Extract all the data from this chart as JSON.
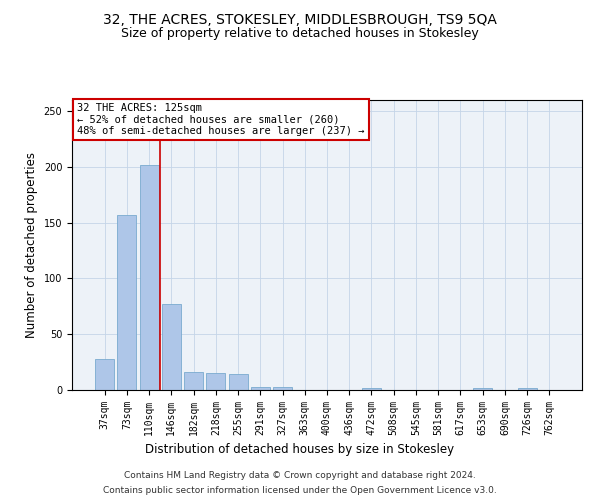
{
  "title": "32, THE ACRES, STOKESLEY, MIDDLESBROUGH, TS9 5QA",
  "subtitle": "Size of property relative to detached houses in Stokesley",
  "xlabel": "Distribution of detached houses by size in Stokesley",
  "ylabel": "Number of detached properties",
  "categories": [
    "37sqm",
    "73sqm",
    "110sqm",
    "146sqm",
    "182sqm",
    "218sqm",
    "255sqm",
    "291sqm",
    "327sqm",
    "363sqm",
    "400sqm",
    "436sqm",
    "472sqm",
    "508sqm",
    "545sqm",
    "581sqm",
    "617sqm",
    "653sqm",
    "690sqm",
    "726sqm",
    "762sqm"
  ],
  "values": [
    28,
    157,
    202,
    77,
    16,
    15,
    14,
    3,
    3,
    0,
    0,
    0,
    2,
    0,
    0,
    0,
    0,
    2,
    0,
    2,
    0
  ],
  "bar_color": "#aec6e8",
  "bar_edge_color": "#7aabcf",
  "line_x_index": 2.5,
  "line_color": "#cc0000",
  "annotation_text": "32 THE ACRES: 125sqm\n← 52% of detached houses are smaller (260)\n48% of semi-detached houses are larger (237) →",
  "annotation_box_color": "#ffffff",
  "annotation_box_edge": "#cc0000",
  "footer_line1": "Contains HM Land Registry data © Crown copyright and database right 2024.",
  "footer_line2": "Contains public sector information licensed under the Open Government Licence v3.0.",
  "ylim": [
    0,
    260
  ],
  "title_fontsize": 10,
  "subtitle_fontsize": 9,
  "axis_label_fontsize": 8.5,
  "tick_fontsize": 7,
  "annotation_fontsize": 7.5,
  "footer_fontsize": 6.5,
  "background_color": "#edf2f8"
}
